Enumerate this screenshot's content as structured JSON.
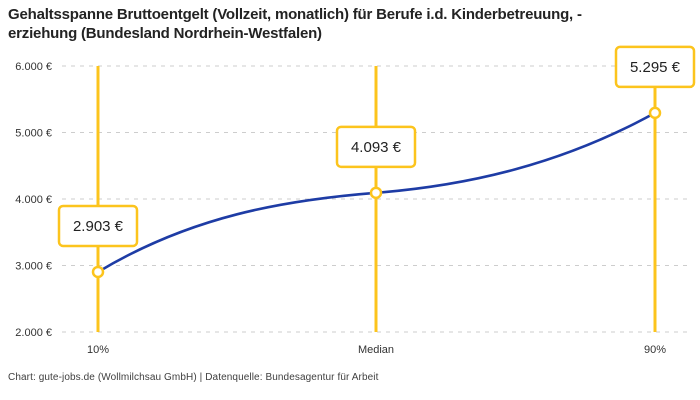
{
  "chart_data": {
    "type": "line",
    "title": "Gehaltsspanne Bruttoentgelt (Vollzeit, monatlich) für Berufe i.d. Kinderbetreuung, -\nerziehung (Bundesland Nordrhein-Westfalen)",
    "categories": [
      "10%",
      "Median",
      "90%"
    ],
    "values": [
      2903,
      4093,
      5295
    ],
    "point_labels": [
      "2.903 €",
      "4.093 €",
      "5.295 €"
    ],
    "xlabel": "",
    "ylabel": "",
    "ylim": [
      2000,
      6000
    ],
    "yticks": [
      2000,
      3000,
      4000,
      5000,
      6000
    ],
    "ytick_labels": [
      "2.000 €",
      "3.000 €",
      "4.000 €",
      "5.000 €",
      "6.000 €"
    ],
    "grid": "horizontal-dashed",
    "legend": "none",
    "colors": {
      "line": "#1e3ca5",
      "accent": "#fcc41d",
      "grid": "#cdcdcd",
      "label_text": "#222222",
      "tick_text": "#333333",
      "box_bg": "#ffffff"
    }
  },
  "footer": {
    "caption": "Chart: gute-jobs.de (Wollmilchsau GmbH) | Datenquelle: Bundesagentur für Arbeit"
  }
}
